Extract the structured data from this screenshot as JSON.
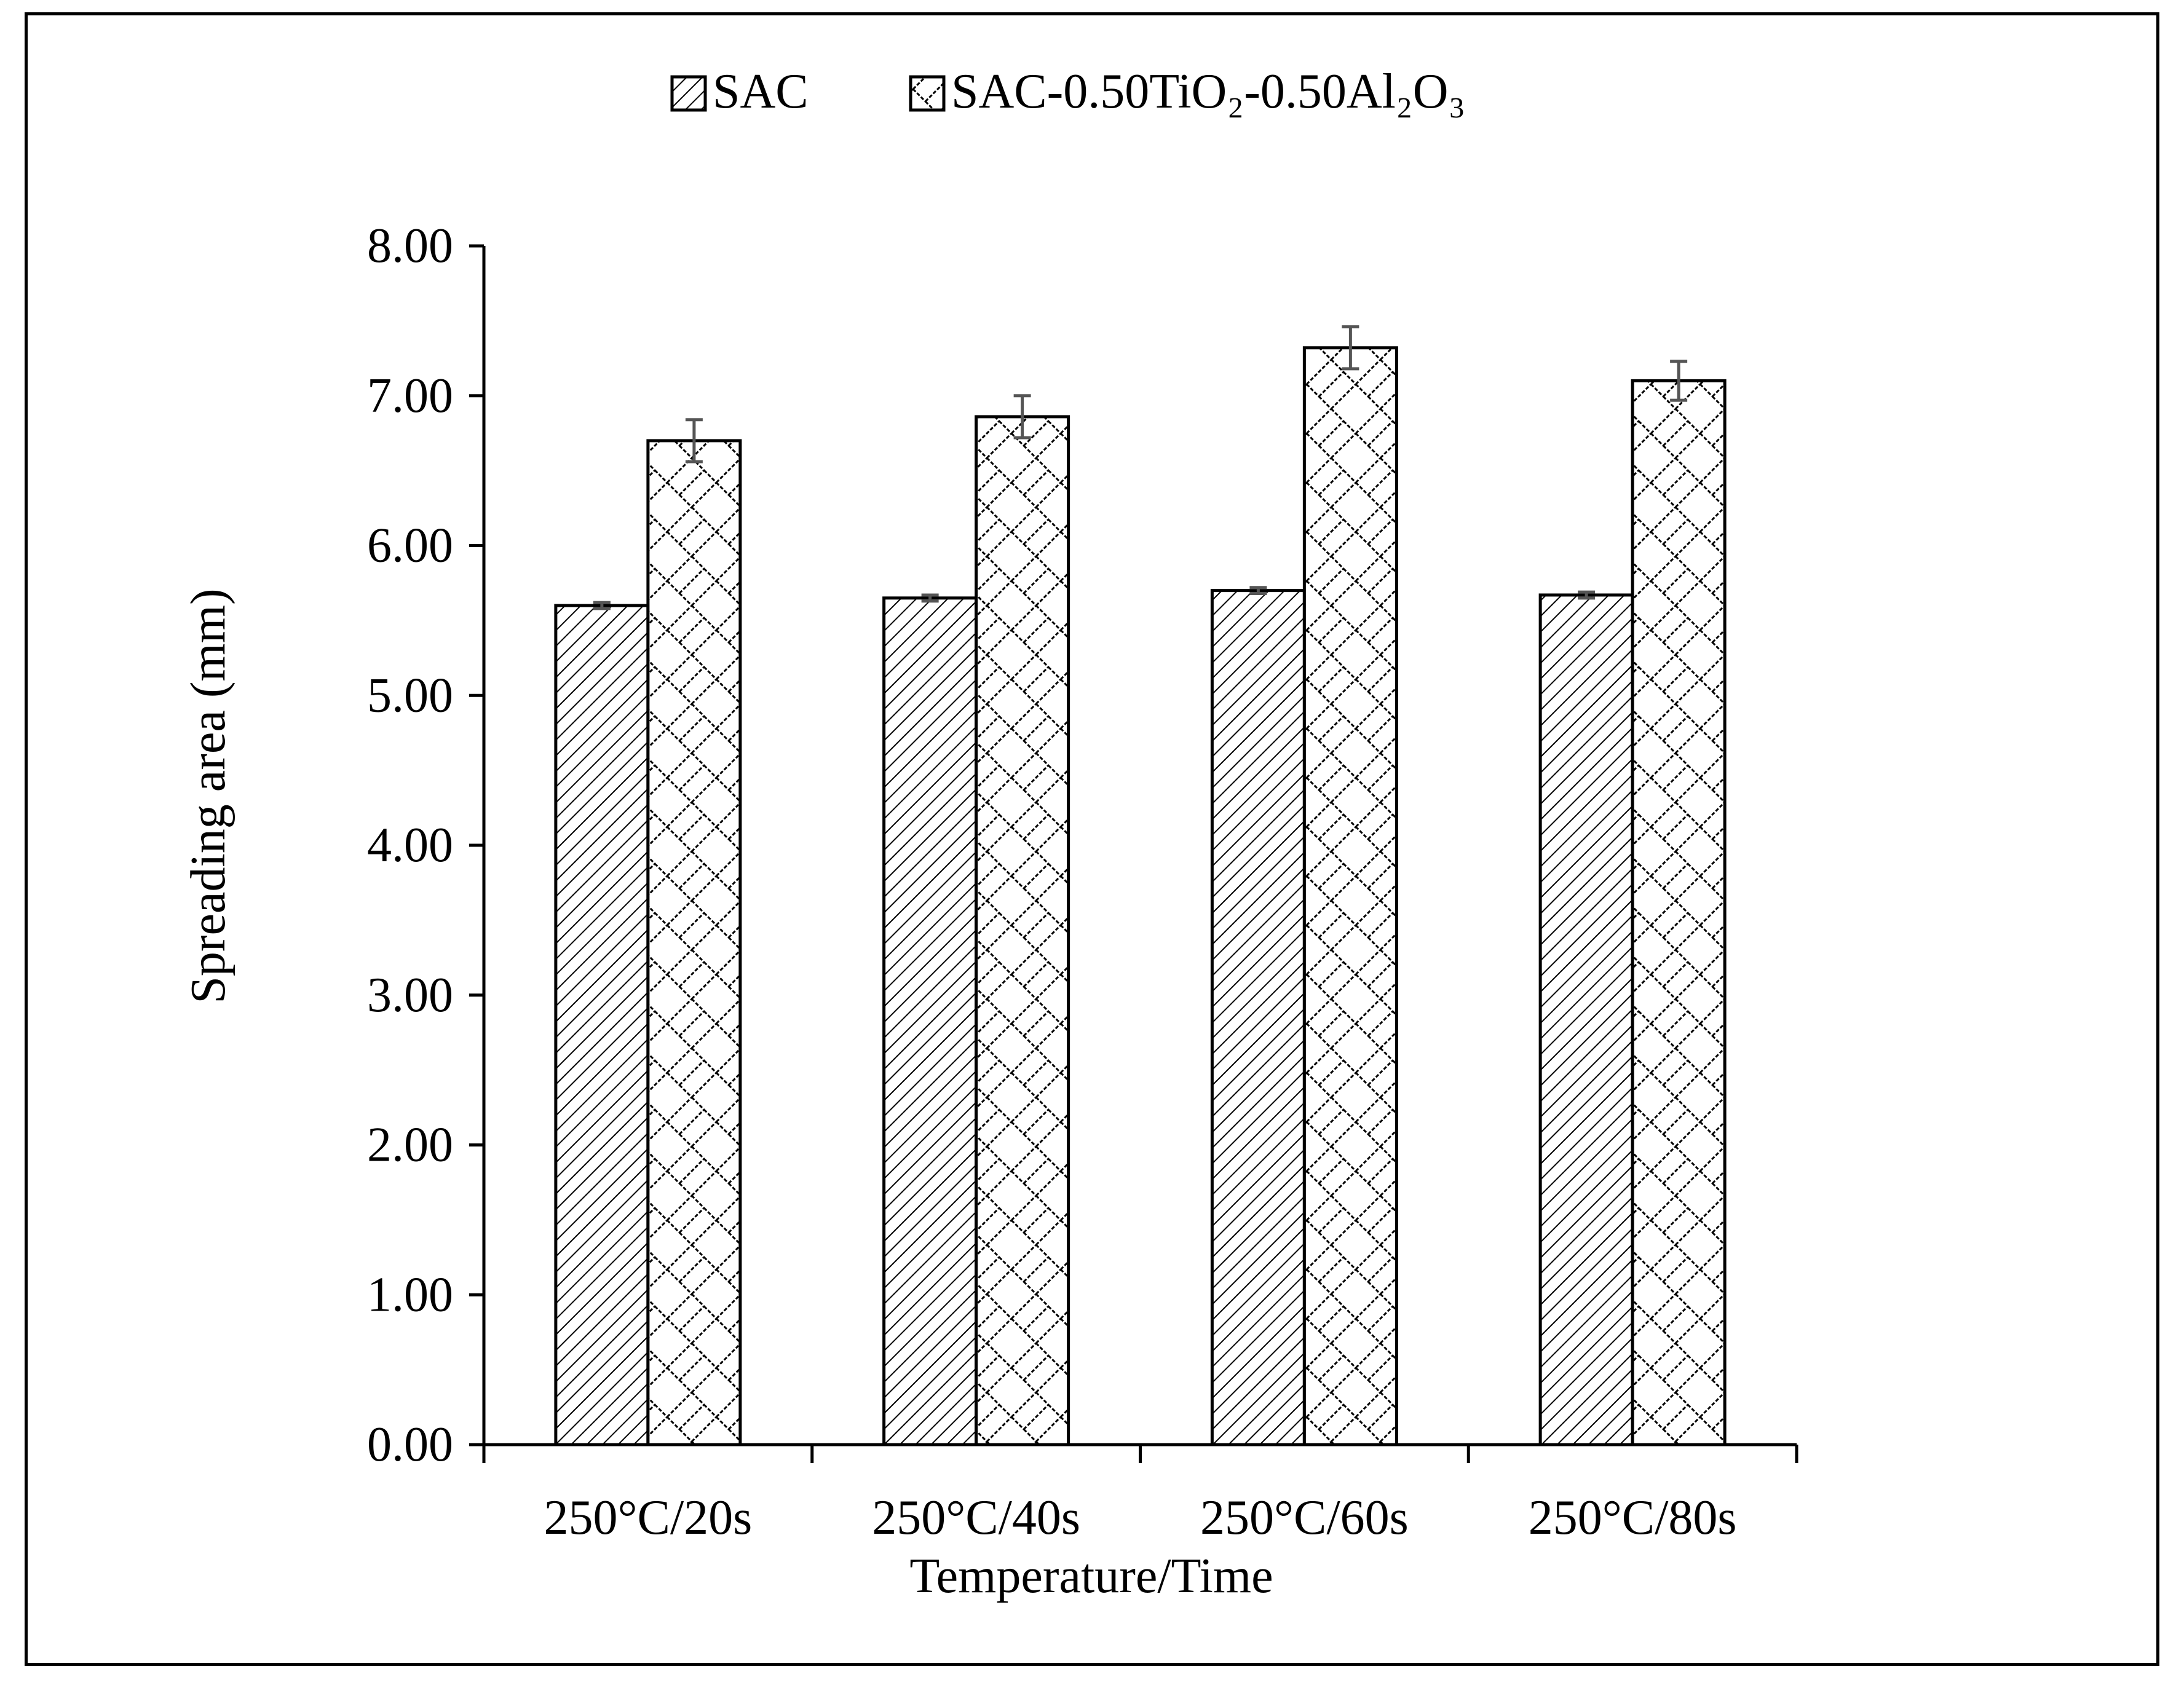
{
  "chart_data": {
    "type": "bar",
    "title": "",
    "xlabel": "Temperature/Time",
    "ylabel": "Spreading area (mm)",
    "ylim": [
      0,
      8
    ],
    "yticks": [
      "0.00",
      "1.00",
      "2.00",
      "3.00",
      "4.00",
      "5.00",
      "6.00",
      "7.00",
      "8.00"
    ],
    "categories": [
      "250°C/20s",
      "250°C/40s",
      "250°C/60s",
      "250°C/80s"
    ],
    "series": [
      {
        "name": "SAC",
        "legend_label": "SAC",
        "pattern": "diagonal-hatch",
        "values": [
          5.6,
          5.65,
          5.7,
          5.67
        ],
        "errors": [
          0.02,
          0.02,
          0.02,
          0.02
        ]
      },
      {
        "name": "SAC-0.50TiO2-0.50Al2O3",
        "legend_label": "SAC-0.50TiO₂-0.50Al₂O₃",
        "pattern": "zigzag-weave",
        "values": [
          6.7,
          6.86,
          7.32,
          7.1
        ],
        "errors": [
          0.14,
          0.14,
          0.14,
          0.13
        ]
      }
    ],
    "legend_position": "top-center",
    "grid": false,
    "colors": {
      "axis": "#000000",
      "bar_fill": "#ffffff",
      "error_bar": "#555555"
    }
  }
}
